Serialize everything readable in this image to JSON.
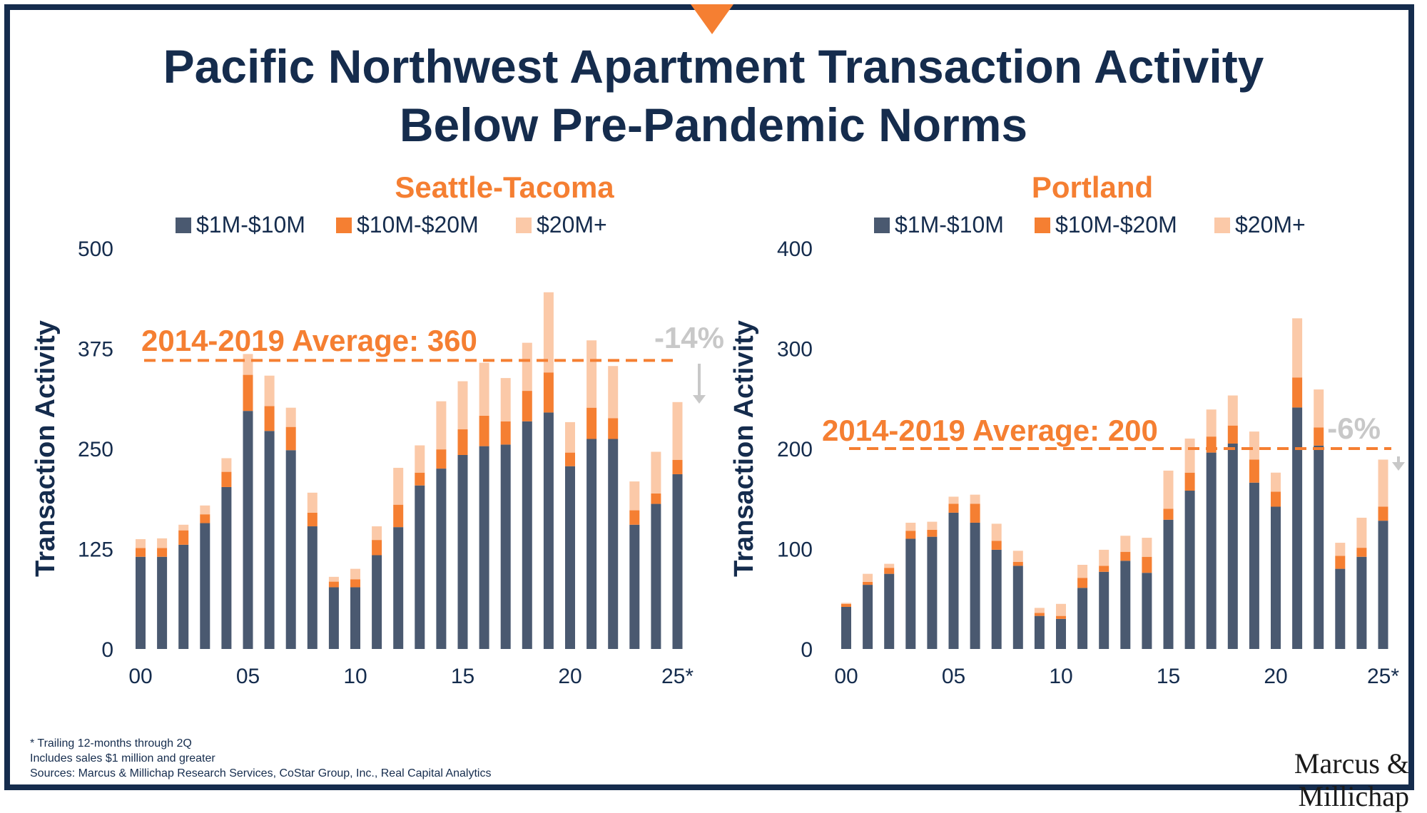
{
  "title_line1": "Pacific Northwest Apartment Transaction Activity",
  "title_line2": "Below Pre-Pandemic Norms",
  "colors": {
    "frame": "#152c4d",
    "navy_text": "#152c4d",
    "accent_orange": "#f57f32",
    "series_1_10": "#4a5970",
    "series_10_20": "#f57f32",
    "series_20_plus": "#fbc9a8",
    "annotation_gray": "#c8c8c8"
  },
  "footnotes": {
    "line1": "* Trailing 12-months through 2Q",
    "line2": "Includes sales $1 million and greater",
    "line3": "Sources: Marcus & Millichap Research Services, CoStar Group, Inc., Real Capital Analytics"
  },
  "logo_text": "Marcus & Millichap",
  "chart_data": [
    {
      "type": "bar",
      "stacked": true,
      "title": "Seattle-Tacoma",
      "ylabel": "Transaction Activity",
      "xlabel": "",
      "ylim": [
        0,
        500
      ],
      "yticks": [
        0,
        125,
        250,
        375,
        500
      ],
      "x_tick_labels": [
        {
          "index": 0,
          "label": "00"
        },
        {
          "index": 5,
          "label": "05"
        },
        {
          "index": 10,
          "label": "10"
        },
        {
          "index": 15,
          "label": "15"
        },
        {
          "index": 20,
          "label": "20"
        },
        {
          "index": 25,
          "label": "25*"
        }
      ],
      "categories": [
        "2000",
        "2001",
        "2002",
        "2003",
        "2004",
        "2005",
        "2006",
        "2007",
        "2008",
        "2009",
        "2010",
        "2011",
        "2012",
        "2013",
        "2014",
        "2015",
        "2016",
        "2017",
        "2018",
        "2019",
        "2020",
        "2021",
        "2022",
        "2023",
        "2024",
        "2025*"
      ],
      "series": [
        {
          "name": "$1M-$10M",
          "color": "#4a5970",
          "values": [
            115,
            115,
            130,
            157,
            202,
            297,
            272,
            248,
            153,
            77,
            77,
            117,
            152,
            204,
            225,
            242,
            253,
            255,
            284,
            295,
            228,
            262,
            262,
            155,
            181,
            218
          ]
        },
        {
          "name": "$10M-$20M",
          "color": "#f57f32",
          "values": [
            11,
            11,
            18,
            11,
            19,
            45,
            31,
            29,
            17,
            7,
            10,
            19,
            28,
            16,
            24,
            32,
            38,
            29,
            38,
            50,
            17,
            39,
            26,
            18,
            13,
            18
          ]
        },
        {
          "name": "$20M+",
          "color": "#fbc9a8",
          "values": [
            11,
            12,
            7,
            11,
            17,
            26,
            38,
            24,
            25,
            6,
            13,
            17,
            46,
            34,
            60,
            60,
            66,
            54,
            60,
            100,
            38,
            84,
            65,
            36,
            52,
            72
          ]
        }
      ],
      "reference_line": {
        "label": "2014-2019 Average: 360",
        "value": 360,
        "color": "#f57f32",
        "style": "dashed"
      },
      "change_annotation": {
        "label": "-14%",
        "color": "#c8c8c8"
      },
      "legend": {
        "placement": "top-center",
        "entries": [
          "$1M-$10M",
          "$10M-$20M",
          "$20M+"
        ]
      },
      "grid": false
    },
    {
      "type": "bar",
      "stacked": true,
      "title": "Portland",
      "ylabel": "Transaction Activity",
      "xlabel": "",
      "ylim": [
        0,
        400
      ],
      "yticks": [
        0,
        100,
        200,
        300,
        400
      ],
      "x_tick_labels": [
        {
          "index": 0,
          "label": "00"
        },
        {
          "index": 5,
          "label": "05"
        },
        {
          "index": 10,
          "label": "10"
        },
        {
          "index": 15,
          "label": "15"
        },
        {
          "index": 20,
          "label": "20"
        },
        {
          "index": 25,
          "label": "25*"
        }
      ],
      "categories": [
        "2000",
        "2001",
        "2002",
        "2003",
        "2004",
        "2005",
        "2006",
        "2007",
        "2008",
        "2009",
        "2010",
        "2011",
        "2012",
        "2013",
        "2014",
        "2015",
        "2016",
        "2017",
        "2018",
        "2019",
        "2020",
        "2021",
        "2022",
        "2023",
        "2024",
        "2025*"
      ],
      "series": [
        {
          "name": "$1M-$10M",
          "color": "#4a5970",
          "values": [
            42,
            64,
            75,
            110,
            112,
            136,
            126,
            99,
            83,
            33,
            30,
            61,
            77,
            88,
            76,
            129,
            158,
            196,
            205,
            166,
            142,
            241,
            203,
            80,
            92,
            128
          ]
        },
        {
          "name": "$10M-$20M",
          "color": "#f57f32",
          "values": [
            3,
            3,
            6,
            8,
            7,
            9,
            19,
            9,
            4,
            3,
            3,
            10,
            6,
            9,
            16,
            11,
            18,
            16,
            18,
            23,
            15,
            30,
            18,
            13,
            9,
            14
          ]
        },
        {
          "name": "$20M+",
          "color": "#fbc9a8",
          "values": [
            1,
            8,
            4,
            8,
            8,
            7,
            9,
            17,
            11,
            5,
            12,
            13,
            16,
            16,
            19,
            38,
            34,
            27,
            30,
            28,
            19,
            59,
            38,
            13,
            30,
            47
          ]
        }
      ],
      "reference_line": {
        "label": "2014-2019 Average: 200",
        "value": 200,
        "color": "#f57f32",
        "style": "dashed"
      },
      "change_annotation": {
        "label": "-6%",
        "color": "#c8c8c8"
      },
      "legend": {
        "placement": "top-center",
        "entries": [
          "$1M-$10M",
          "$10M-$20M",
          "$20M+"
        ]
      },
      "grid": false
    }
  ]
}
